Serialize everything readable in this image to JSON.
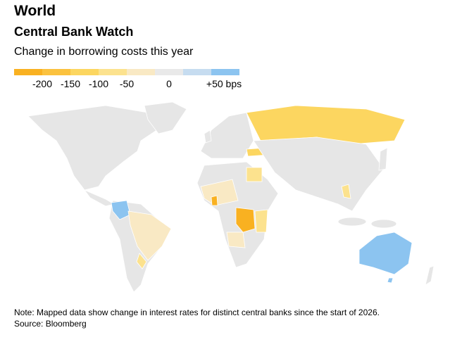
{
  "header": {
    "title": "World",
    "subtitle": "Central Bank Watch",
    "description": "Change in borrowing costs this year"
  },
  "legend": {
    "colors": [
      "#f9b121",
      "#fbc23f",
      "#fcd660",
      "#fce28e",
      "#f9e9c4",
      "#e9e9e9",
      "#c6dcf0",
      "#8cc4f0"
    ],
    "labels": [
      "-200",
      "-150",
      "-100",
      "-50",
      "0",
      "+50 bps"
    ]
  },
  "footer": {
    "note": "Note: Mapped data show change in interest rates for distinct central banks since the start of 2026.",
    "source": "Source: Bloomberg"
  }
}
